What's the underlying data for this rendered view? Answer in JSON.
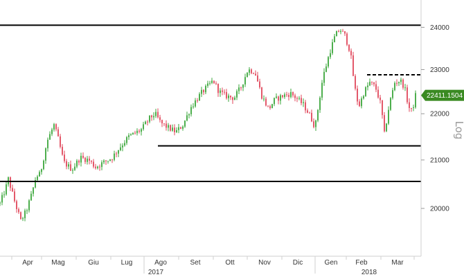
{
  "chart_data": {
    "type": "candlestick",
    "scale": "log",
    "scale_label": "Log",
    "ylim": [
      19100,
      24600
    ],
    "y_ticks": [
      24000,
      23000,
      22000,
      21000,
      20000
    ],
    "last_value": "22411.1504",
    "x_months": [
      "Apr",
      "Mag",
      "Giu",
      "Lug",
      "Ago",
      "Set",
      "Ott",
      "Nov",
      "Dic",
      "Gen",
      "Feb",
      "Mar"
    ],
    "x_years": [
      "2017",
      "2018"
    ],
    "horizontal_lines": [
      {
        "value": 24050,
        "style": "solid",
        "span": "full"
      },
      {
        "value": 22880,
        "style": "dashed",
        "span": "partial"
      },
      {
        "value": 21300,
        "style": "solid",
        "span": "partial"
      },
      {
        "value": 20550,
        "style": "solid",
        "span": "full"
      }
    ],
    "colors": {
      "up": "#3aa63a",
      "down": "#e0465a",
      "line": "#000000",
      "last_bg": "#3a8a22"
    },
    "anchors": [
      {
        "t": 0,
        "v": 20100
      },
      {
        "t": 8,
        "v": 20400
      },
      {
        "t": 12,
        "v": 20600
      },
      {
        "t": 22,
        "v": 20100
      },
      {
        "t": 30,
        "v": 19750
      },
      {
        "t": 38,
        "v": 19950
      },
      {
        "t": 46,
        "v": 20300
      },
      {
        "t": 52,
        "v": 20650
      },
      {
        "t": 58,
        "v": 20700
      },
      {
        "t": 68,
        "v": 21400
      },
      {
        "t": 78,
        "v": 21750
      },
      {
        "t": 84,
        "v": 21450
      },
      {
        "t": 92,
        "v": 20950
      },
      {
        "t": 104,
        "v": 20800
      },
      {
        "t": 116,
        "v": 21050
      },
      {
        "t": 128,
        "v": 21000
      },
      {
        "t": 138,
        "v": 20850
      },
      {
        "t": 150,
        "v": 20950
      },
      {
        "t": 162,
        "v": 21050
      },
      {
        "t": 172,
        "v": 21250
      },
      {
        "t": 186,
        "v": 21500
      },
      {
        "t": 204,
        "v": 21650
      },
      {
        "t": 216,
        "v": 21900
      },
      {
        "t": 224,
        "v": 22000
      },
      {
        "t": 232,
        "v": 21800
      },
      {
        "t": 242,
        "v": 21700
      },
      {
        "t": 254,
        "v": 21600
      },
      {
        "t": 264,
        "v": 21750
      },
      {
        "t": 276,
        "v": 22150
      },
      {
        "t": 290,
        "v": 22450
      },
      {
        "t": 302,
        "v": 22650
      },
      {
        "t": 308,
        "v": 22750
      },
      {
        "t": 316,
        "v": 22500
      },
      {
        "t": 326,
        "v": 22400
      },
      {
        "t": 338,
        "v": 22350
      },
      {
        "t": 348,
        "v": 22600
      },
      {
        "t": 358,
        "v": 23000
      },
      {
        "t": 368,
        "v": 22950
      },
      {
        "t": 378,
        "v": 22400
      },
      {
        "t": 388,
        "v": 22100
      },
      {
        "t": 396,
        "v": 22300
      },
      {
        "t": 408,
        "v": 22400
      },
      {
        "t": 420,
        "v": 22450
      },
      {
        "t": 428,
        "v": 22350
      },
      {
        "t": 438,
        "v": 22200
      },
      {
        "t": 448,
        "v": 21950
      },
      {
        "t": 455,
        "v": 21700
      },
      {
        "t": 460,
        "v": 22200
      },
      {
        "t": 466,
        "v": 22800
      },
      {
        "t": 476,
        "v": 23400
      },
      {
        "t": 484,
        "v": 23800
      },
      {
        "t": 491,
        "v": 23950
      },
      {
        "t": 498,
        "v": 23800
      },
      {
        "t": 506,
        "v": 23400
      },
      {
        "t": 512,
        "v": 22600
      },
      {
        "t": 518,
        "v": 22150
      },
      {
        "t": 526,
        "v": 22500
      },
      {
        "t": 534,
        "v": 22700
      },
      {
        "t": 542,
        "v": 22600
      },
      {
        "t": 550,
        "v": 22200
      },
      {
        "t": 555,
        "v": 21550
      },
      {
        "t": 562,
        "v": 22200
      },
      {
        "t": 570,
        "v": 22700
      },
      {
        "t": 578,
        "v": 22750
      },
      {
        "t": 584,
        "v": 22600
      },
      {
        "t": 590,
        "v": 22150
      },
      {
        "t": 595,
        "v": 22050
      },
      {
        "t": 600,
        "v": 22411
      }
    ]
  }
}
